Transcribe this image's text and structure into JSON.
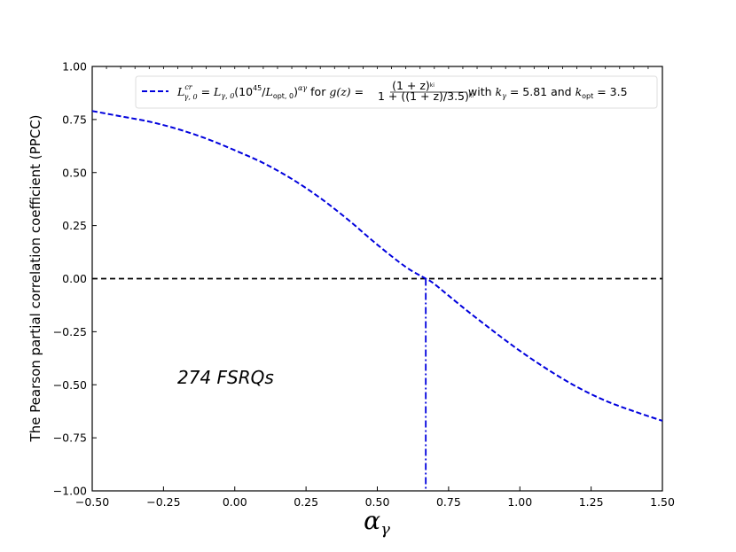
{
  "chart_data": {
    "type": "line",
    "xlabel": "α_γ",
    "ylabel": "The Pearson partial correlation coefficient (PPCC)",
    "xlim": [
      -0.5,
      1.5
    ],
    "ylim": [
      -1.0,
      1.0
    ],
    "x_ticks": [
      -0.5,
      -0.25,
      0.0,
      0.25,
      0.5,
      0.75,
      1.0,
      1.25,
      1.5
    ],
    "x_tick_labels": [
      "−0.50",
      "−0.25",
      "0.00",
      "0.25",
      "0.50",
      "0.75",
      "1.00",
      "1.25",
      "1.50"
    ],
    "y_ticks": [
      -1.0,
      -0.75,
      -0.5,
      -0.25,
      0.0,
      0.25,
      0.5,
      0.75,
      1.0
    ],
    "y_tick_labels": [
      "−1.00",
      "−0.75",
      "−0.50",
      "−0.25",
      "0.00",
      "0.25",
      "0.50",
      "0.75",
      "1.00"
    ],
    "grid": false,
    "legend_position": "top-right",
    "annotation": "274 FSRQs",
    "zero_line_y": 0.0,
    "crossing_x": 0.67,
    "series": [
      {
        "name": "L^{cr}_{γ,0} = L_{γ,0}(10^{45}/L_{opt,0})^{α_γ} for g(z) = (1+z)^{k_i} / (1+((1+z)/3.5)^{k_i}) with k_γ = 5.81 and k_opt = 3.5",
        "color": "#0000dd",
        "style": "dashed",
        "x": [
          -0.5,
          -0.4,
          -0.3,
          -0.2,
          -0.1,
          0.0,
          0.1,
          0.2,
          0.3,
          0.4,
          0.5,
          0.6,
          0.67,
          0.7,
          0.8,
          0.9,
          1.0,
          1.1,
          1.2,
          1.3,
          1.4,
          1.5
        ],
        "y": [
          0.79,
          0.765,
          0.74,
          0.705,
          0.66,
          0.605,
          0.545,
          0.47,
          0.38,
          0.275,
          0.16,
          0.055,
          0.0,
          -0.025,
          -0.135,
          -0.24,
          -0.34,
          -0.43,
          -0.51,
          -0.575,
          -0.625,
          -0.67
        ]
      }
    ]
  },
  "legend": {
    "prefix": "L",
    "sup_cr": "cr",
    "sub_g0": "γ, 0",
    "eq1": " = ",
    "L2": "L",
    "sub_g0b": "γ, 0",
    "paren_open": "(10",
    "sup45": "45",
    "slash": "/",
    "L3": "L",
    "sub_opt0": "opt, 0",
    "paren_close": ")",
    "sup_alpha": "αγ",
    "for_text": " for ",
    "gz": "g(z)",
    "eq2": " = ",
    "numer": "(1 + z)",
    "numer_sup": "ki",
    "denom": "1 + ((1 + z)/3.5)",
    "denom_sup": "ki",
    "with_text": " with ",
    "k1": "k",
    "k1_sub": "γ",
    "k1_val": " = 5.81 and ",
    "k2": "k",
    "k2_sub": "opt",
    "k2_val": " = 3.5"
  }
}
